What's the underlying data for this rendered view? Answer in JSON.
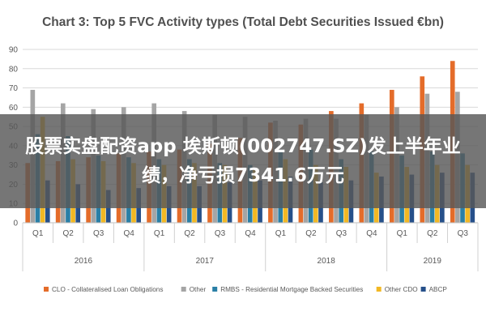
{
  "chart_data": {
    "type": "bar",
    "title": "Chart 3: Top 5 FVC Activity types (Total Debt Securities Issued €bn)",
    "xlabel": "",
    "ylabel": "",
    "ylim": [
      0,
      90
    ],
    "yticks": [
      0,
      10,
      20,
      30,
      40,
      50,
      60,
      70,
      80,
      90
    ],
    "grid": true,
    "legend_position": "bottom",
    "categories": [
      "Q1",
      "Q2",
      "Q3",
      "Q4",
      "Q1",
      "Q2",
      "Q3",
      "Q4",
      "Q1",
      "Q2",
      "Q3",
      "Q4",
      "Q1",
      "Q2",
      "Q3"
    ],
    "year_groups": [
      {
        "label": "2016",
        "count": 4
      },
      {
        "label": "2017",
        "count": 4
      },
      {
        "label": "2018",
        "count": 4
      },
      {
        "label": "2019",
        "count": 3
      }
    ],
    "series": [
      {
        "name": "CLO - Collateralised Loan Obligations",
        "color": "#e46c2a",
        "values": [
          31,
          32,
          34,
          36,
          37,
          38,
          41,
          44,
          52,
          51,
          58,
          62,
          69,
          76,
          84
        ]
      },
      {
        "name": "Other",
        "color": "#a5a5a5",
        "values": [
          69,
          62,
          59,
          60,
          62,
          58,
          56,
          55,
          53,
          54,
          54,
          56,
          60,
          67,
          68
        ]
      },
      {
        "name": "RMBS - Residential Mortgage Backed Securities",
        "color": "#2a7fa6",
        "values": [
          46,
          45,
          35,
          34,
          33,
          33,
          31,
          30,
          38,
          38,
          33,
          37,
          35,
          37,
          36
        ]
      },
      {
        "name": "Other CDO",
        "color": "#f2b824",
        "values": [
          55,
          33,
          32,
          31,
          30,
          31,
          30,
          28,
          33,
          30,
          29,
          26,
          29,
          30,
          30
        ]
      },
      {
        "name": "ABCP",
        "color": "#26508a",
        "values": [
          22,
          20,
          17,
          18,
          19,
          19,
          21,
          22,
          24,
          21,
          22,
          24,
          25,
          26,
          26
        ]
      }
    ]
  },
  "overlay_banner": {
    "text": "股票实盘配资app 埃斯顿(002747.SZ)发上半年业绩，净亏损7341.6万元"
  }
}
